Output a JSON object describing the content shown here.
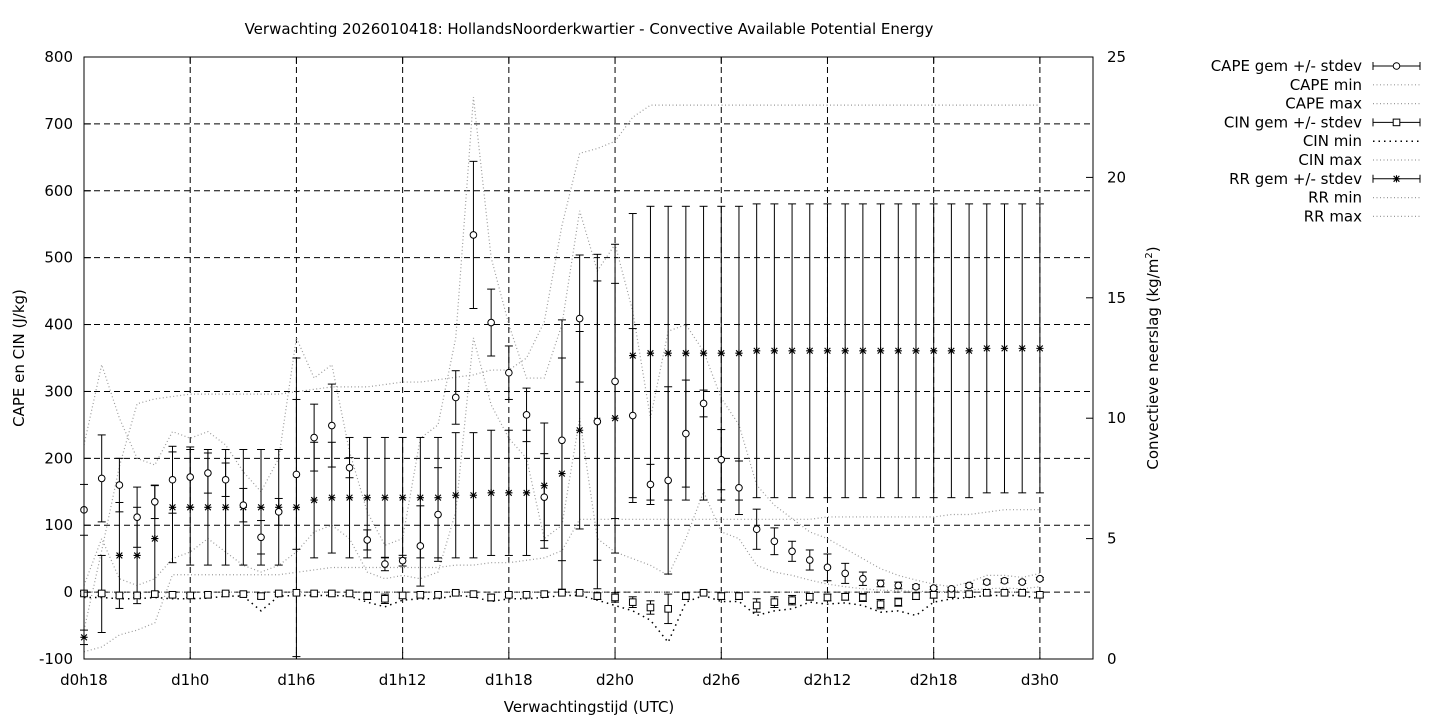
{
  "chart_data": {
    "type": "scatter",
    "title": "Verwachting 2026010418: HollandsNoorderkwartier - Convective Available Potential Energy",
    "xlabel": "Verwachtingstijd (UTC)",
    "ylabel": "CAPE en CIN (J/kg)",
    "y2label_main": "Convectieve neerslag (kg/m",
    "y2label_sup": "2",
    "y2label_end": ")",
    "xlim": [
      18,
      75
    ],
    "ylim": [
      -100,
      800
    ],
    "y2lim": [
      0,
      25
    ],
    "x_ticks": [
      18,
      24,
      30,
      36,
      42,
      48,
      54,
      60,
      66,
      72
    ],
    "x_tick_labels": [
      "d0h18",
      "d1h0",
      "d1h6",
      "d1h12",
      "d1h18",
      "d2h0",
      "d2h6",
      "d2h12",
      "d2h18",
      "d3h0"
    ],
    "y_ticks": [
      -100,
      0,
      100,
      200,
      300,
      400,
      500,
      600,
      700,
      800
    ],
    "y_tick_labels": [
      "-100",
      "0",
      "100",
      "200",
      "300",
      "400",
      "500",
      "600",
      "700",
      "800"
    ],
    "y2_ticks": [
      0,
      5,
      10,
      15,
      20,
      25
    ],
    "y2_tick_labels": [
      "0",
      "5",
      "10",
      "15",
      "20",
      "25"
    ],
    "grid": true,
    "legend_placement": "right, outside plot",
    "legend": [
      {
        "label": "CAPE gem +/- stdev",
        "style": "errorbar-circle"
      },
      {
        "label": "CAPE min",
        "style": "dotted"
      },
      {
        "label": "CAPE max",
        "style": "dotted"
      },
      {
        "label": "CIN gem +/- stdev",
        "style": "errorbar-square"
      },
      {
        "label": "CIN min",
        "style": "dotted-dark"
      },
      {
        "label": "CIN max",
        "style": "dotted"
      },
      {
        "label": "RR gem +/- stdev",
        "style": "errorbar-star"
      },
      {
        "label": "RR min",
        "style": "dotted"
      },
      {
        "label": "RR max",
        "style": "dotted"
      }
    ],
    "series": [
      {
        "name": "CAPE gem +/- stdev",
        "axis": "left",
        "x": [
          18,
          19,
          20,
          21,
          22,
          23,
          24,
          25,
          26,
          27,
          28,
          29,
          30,
          31,
          32,
          33,
          34,
          35,
          36,
          37,
          38,
          39,
          40,
          41,
          42,
          43,
          44,
          45,
          46,
          47,
          48,
          49,
          50,
          51,
          52,
          53,
          54,
          55,
          56,
          57,
          58,
          59,
          60,
          61,
          62,
          63,
          64,
          65,
          66,
          67,
          68,
          69,
          70,
          71,
          72
        ],
        "mean": [
          123,
          170,
          160,
          112,
          135,
          168,
          172,
          178,
          168,
          130,
          82,
          120,
          176,
          231,
          249,
          186,
          78,
          42,
          47,
          69,
          116,
          291,
          534,
          403,
          328,
          265,
          142,
          227,
          409,
          255,
          315,
          264,
          161,
          167,
          237,
          282,
          198,
          156,
          94,
          76,
          61,
          48,
          37,
          28,
          20,
          13,
          10,
          8,
          6,
          5,
          10,
          15,
          17,
          15,
          20
        ],
        "stdev": [
          38,
          65,
          40,
          45,
          25,
          50,
          45,
          30,
          25,
          25,
          25,
          20,
          112,
          50,
          62,
          15,
          15,
          10,
          8,
          60,
          70,
          40,
          110,
          50,
          40,
          40,
          65,
          180,
          95,
          250,
          205,
          130,
          30,
          140,
          80,
          20,
          45,
          40,
          30,
          20,
          15,
          15,
          20,
          15,
          10,
          5,
          5,
          3,
          2,
          2,
          3,
          3,
          3,
          2,
          2
        ]
      },
      {
        "name": "CIN gem +/- stdev",
        "axis": "left",
        "x": [
          18,
          19,
          20,
          21,
          22,
          23,
          24,
          25,
          26,
          27,
          28,
          29,
          30,
          31,
          32,
          33,
          34,
          35,
          36,
          37,
          38,
          39,
          40,
          41,
          42,
          43,
          44,
          45,
          46,
          47,
          48,
          49,
          50,
          51,
          52,
          53,
          54,
          55,
          56,
          57,
          58,
          59,
          60,
          61,
          62,
          63,
          64,
          65,
          66,
          67,
          68,
          69,
          70,
          71,
          72
        ],
        "mean": [
          -2,
          -2,
          -5,
          -5,
          -3,
          -4,
          -5,
          -4,
          -2,
          -3,
          -6,
          -2,
          -1,
          -2,
          -2,
          -2,
          -6,
          -10,
          -5,
          -4,
          -4,
          -1,
          -3,
          -8,
          -4,
          -4,
          -3,
          -1,
          -1,
          -6,
          -8,
          -15,
          -23,
          -25,
          -6,
          -1,
          -6,
          -6,
          -20,
          -15,
          -12,
          -7,
          -8,
          -7,
          -8,
          -18,
          -15,
          -6,
          -4,
          -3,
          -3,
          -1,
          -1,
          -1,
          -4
        ],
        "stdev": [
          3,
          3,
          3,
          3,
          3,
          3,
          3,
          3,
          2,
          2,
          4,
          2,
          2,
          2,
          2,
          2,
          5,
          7,
          4,
          3,
          3,
          2,
          2,
          5,
          3,
          3,
          2,
          2,
          2,
          5,
          7,
          8,
          10,
          22,
          5,
          2,
          5,
          5,
          10,
          8,
          7,
          5,
          5,
          5,
          6,
          7,
          6,
          5,
          5,
          4,
          3,
          2,
          2,
          2,
          3
        ]
      },
      {
        "name": "RR gem +/- stdev",
        "axis": "right",
        "x": [
          18,
          19,
          20,
          21,
          22,
          23,
          24,
          25,
          26,
          27,
          28,
          29,
          30,
          31,
          32,
          33,
          34,
          35,
          36,
          37,
          38,
          39,
          40,
          41,
          42,
          43,
          44,
          45,
          46,
          47,
          48,
          49,
          50,
          51,
          52,
          53,
          54,
          55,
          56,
          57,
          58,
          59,
          60,
          61,
          62,
          63,
          64,
          65,
          66,
          67,
          68,
          69,
          70,
          71,
          72
        ],
        "mean": [
          0.9,
          2.7,
          4.3,
          4.3,
          5.0,
          6.3,
          6.3,
          6.3,
          6.3,
          6.3,
          6.3,
          6.3,
          6.3,
          6.6,
          6.7,
          6.7,
          6.7,
          6.7,
          6.7,
          6.7,
          6.7,
          6.8,
          6.8,
          6.9,
          6.9,
          6.9,
          7.2,
          7.7,
          9.5,
          9.9,
          10.0,
          12.6,
          12.7,
          12.7,
          12.7,
          12.7,
          12.7,
          12.7,
          12.8,
          12.8,
          12.8,
          12.8,
          12.8,
          12.8,
          12.8,
          12.8,
          12.8,
          12.8,
          12.8,
          12.8,
          12.8,
          12.9,
          12.9,
          12.9,
          12.9
        ],
        "stdev": [
          0.3,
          1.6,
          2.2,
          2.0,
          2.2,
          2.3,
          2.4,
          2.4,
          2.4,
          2.4,
          2.4,
          2.4,
          6.2,
          2.4,
          2.3,
          2.5,
          2.5,
          2.5,
          2.5,
          2.5,
          2.5,
          2.6,
          2.6,
          2.6,
          2.6,
          2.6,
          2.6,
          4.8,
          4.1,
          5.8,
          5.6,
          5.9,
          6.1,
          6.1,
          6.1,
          6.1,
          6.1,
          6.1,
          6.1,
          6.1,
          6.1,
          6.1,
          6.1,
          6.1,
          6.1,
          6.1,
          6.1,
          6.1,
          6.1,
          6.1,
          6.1,
          6.0,
          6.0,
          6.0,
          6.0
        ]
      },
      {
        "name": "CAPE min",
        "axis": "left",
        "x": [
          18,
          19,
          20,
          21,
          22,
          23,
          24,
          25,
          26,
          27,
          28,
          29,
          30,
          31,
          32,
          33,
          34,
          35,
          36,
          37,
          38,
          39,
          40,
          41,
          42,
          43,
          44,
          45,
          46,
          47,
          48,
          49,
          50,
          51,
          52,
          53,
          54,
          55,
          56,
          57,
          58,
          59,
          60,
          61,
          62,
          63,
          64,
          65,
          66,
          67,
          68,
          69,
          70,
          71,
          72
        ],
        "values": [
          10,
          80,
          20,
          10,
          20,
          50,
          60,
          80,
          60,
          40,
          30,
          40,
          60,
          90,
          100,
          80,
          30,
          20,
          25,
          20,
          30,
          120,
          380,
          280,
          230,
          200,
          80,
          100,
          260,
          80,
          60,
          50,
          40,
          25,
          80,
          150,
          90,
          80,
          40,
          30,
          25,
          18,
          12,
          8,
          5,
          3,
          2,
          1,
          1,
          1,
          3,
          5,
          6,
          5,
          8
        ]
      },
      {
        "name": "CAPE max",
        "axis": "left",
        "x": [
          18,
          19,
          20,
          21,
          22,
          23,
          24,
          25,
          26,
          27,
          28,
          29,
          30,
          31,
          32,
          33,
          34,
          35,
          36,
          37,
          38,
          39,
          40,
          41,
          42,
          43,
          44,
          45,
          46,
          47,
          48,
          49,
          50,
          51,
          52,
          53,
          54,
          55,
          56,
          57,
          58,
          59,
          60,
          61,
          62,
          63,
          64,
          65,
          66,
          67,
          68,
          69,
          70,
          71,
          72
        ],
        "values": [
          220,
          340,
          260,
          200,
          190,
          240,
          230,
          240,
          220,
          180,
          150,
          200,
          380,
          320,
          340,
          210,
          120,
          70,
          80,
          230,
          250,
          380,
          740,
          500,
          400,
          320,
          320,
          400,
          570,
          480,
          520,
          420,
          260,
          390,
          400,
          360,
          290,
          250,
          160,
          130,
          110,
          90,
          80,
          65,
          50,
          35,
          25,
          18,
          12,
          8,
          15,
          25,
          25,
          22,
          28
        ]
      },
      {
        "name": "CIN min",
        "axis": "left",
        "x": [
          18,
          19,
          20,
          21,
          22,
          23,
          24,
          25,
          26,
          27,
          28,
          29,
          30,
          31,
          32,
          33,
          34,
          35,
          36,
          37,
          38,
          39,
          40,
          41,
          42,
          43,
          44,
          45,
          46,
          47,
          48,
          49,
          50,
          51,
          52,
          53,
          54,
          55,
          56,
          57,
          58,
          59,
          60,
          61,
          62,
          63,
          64,
          65,
          66,
          67,
          68,
          69,
          70,
          71,
          72
        ],
        "values": [
          -8,
          -8,
          -10,
          -10,
          -8,
          -10,
          -10,
          -9,
          -6,
          -6,
          -28,
          -6,
          -5,
          -5,
          -5,
          -6,
          -15,
          -22,
          -12,
          -10,
          -10,
          -5,
          -7,
          -14,
          -10,
          -10,
          -8,
          -5,
          -5,
          -12,
          -20,
          -28,
          -42,
          -75,
          -15,
          -5,
          -14,
          -14,
          -35,
          -28,
          -25,
          -15,
          -18,
          -16,
          -20,
          -30,
          -28,
          -35,
          -15,
          -10,
          -8,
          -5,
          -5,
          -5,
          -10
        ]
      },
      {
        "name": "CIN max",
        "axis": "left",
        "x": [
          18,
          19,
          20,
          21,
          22,
          23,
          24,
          25,
          26,
          27,
          28,
          29,
          30,
          31,
          32,
          33,
          34,
          35,
          36,
          37,
          38,
          39,
          40,
          41,
          42,
          43,
          44,
          45,
          46,
          47,
          48,
          49,
          50,
          51,
          52,
          53,
          54,
          55,
          56,
          57,
          58,
          59,
          60,
          61,
          62,
          63,
          64,
          65,
          66,
          67,
          68,
          69,
          70,
          71,
          72
        ],
        "values": [
          0,
          0,
          0,
          0,
          0,
          0,
          0,
          0,
          0,
          0,
          0,
          0,
          0,
          0,
          0,
          0,
          0,
          0,
          0,
          0,
          0,
          0,
          0,
          0,
          0,
          0,
          0,
          0,
          0,
          0,
          0,
          0,
          0,
          0,
          0,
          0,
          0,
          0,
          0,
          0,
          0,
          0,
          0,
          0,
          0,
          0,
          0,
          0,
          0,
          0,
          0,
          0,
          0,
          0,
          0
        ]
      },
      {
        "name": "RR min",
        "axis": "right",
        "x": [
          18,
          19,
          20,
          21,
          22,
          23,
          24,
          25,
          26,
          27,
          28,
          29,
          30,
          31,
          32,
          33,
          34,
          35,
          36,
          37,
          38,
          39,
          40,
          41,
          42,
          43,
          44,
          45,
          46,
          47,
          48,
          49,
          50,
          51,
          52,
          53,
          54,
          55,
          56,
          57,
          58,
          59,
          60,
          61,
          62,
          63,
          64,
          65,
          66,
          67,
          68,
          69,
          70,
          71,
          72
        ],
        "values": [
          0.3,
          0.5,
          1.0,
          1.2,
          1.5,
          3.5,
          3.5,
          3.5,
          3.5,
          3.5,
          3.5,
          3.5,
          3.6,
          3.7,
          3.8,
          3.8,
          3.8,
          3.8,
          3.8,
          3.8,
          3.8,
          3.9,
          3.9,
          4.0,
          4.0,
          4.1,
          4.2,
          4.5,
          5.8,
          5.8,
          5.8,
          5.8,
          5.8,
          5.8,
          5.8,
          5.8,
          5.8,
          5.8,
          5.8,
          5.8,
          5.8,
          5.8,
          5.9,
          5.9,
          5.9,
          5.9,
          5.9,
          5.9,
          5.9,
          6.0,
          6.0,
          6.1,
          6.2,
          6.2,
          6.2
        ]
      },
      {
        "name": "RR max",
        "axis": "right",
        "x": [
          18,
          19,
          20,
          21,
          22,
          23,
          24,
          25,
          26,
          27,
          28,
          29,
          30,
          31,
          32,
          33,
          34,
          35,
          36,
          37,
          38,
          39,
          40,
          41,
          42,
          43,
          44,
          45,
          46,
          47,
          48,
          49,
          50,
          51,
          52,
          53,
          54,
          55,
          56,
          57,
          58,
          59,
          60,
          61,
          62,
          63,
          64,
          65,
          66,
          67,
          68,
          69,
          70,
          71,
          72
        ],
        "values": [
          1.2,
          4.5,
          8.0,
          10.6,
          10.8,
          10.9,
          11.0,
          11.0,
          11.0,
          11.0,
          11.0,
          11.0,
          11.1,
          11.2,
          11.3,
          11.3,
          11.3,
          11.4,
          11.5,
          11.5,
          11.6,
          11.7,
          11.8,
          12.0,
          12.0,
          12.5,
          14.0,
          18.0,
          21.0,
          21.2,
          21.5,
          22.5,
          23.0,
          23.0,
          23.0,
          23.0,
          23.0,
          23.0,
          23.0,
          23.0,
          23.0,
          23.0,
          23.0,
          23.0,
          23.0,
          23.0,
          23.0,
          23.0,
          23.0,
          23.0,
          23.0,
          23.0,
          23.0,
          23.0,
          23.0
        ]
      }
    ]
  }
}
